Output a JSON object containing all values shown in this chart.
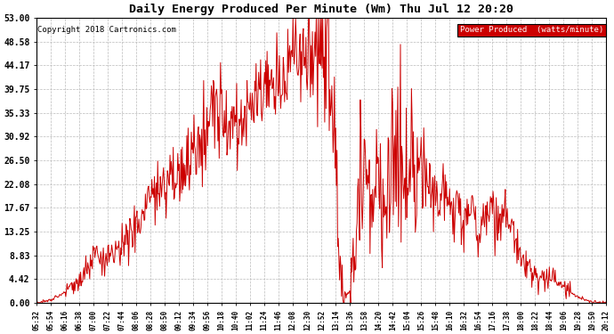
{
  "title": "Daily Energy Produced Per Minute (Wm) Thu Jul 12 20:20",
  "copyright": "Copyright 2018 Cartronics.com",
  "legend_label": "Power Produced  (watts/minute)",
  "legend_bg": "#cc0000",
  "legend_fg": "#ffffff",
  "line_color": "#cc0000",
  "bg_color": "#ffffff",
  "grid_color": "#bbbbbb",
  "y_ticks": [
    0.0,
    4.42,
    8.83,
    13.25,
    17.67,
    22.08,
    26.5,
    30.92,
    35.33,
    39.75,
    44.17,
    48.58,
    53.0
  ],
  "ymax": 53.0,
  "ymin": 0.0,
  "x_tick_labels": [
    "05:32",
    "05:54",
    "06:16",
    "06:38",
    "07:00",
    "07:22",
    "07:44",
    "08:06",
    "08:28",
    "08:50",
    "09:12",
    "09:34",
    "09:56",
    "10:18",
    "10:40",
    "11:02",
    "11:24",
    "11:46",
    "12:08",
    "12:30",
    "12:52",
    "13:14",
    "13:36",
    "13:58",
    "14:20",
    "14:42",
    "15:04",
    "15:26",
    "15:48",
    "16:10",
    "16:32",
    "16:54",
    "17:16",
    "17:38",
    "18:00",
    "18:22",
    "18:44",
    "19:06",
    "19:28",
    "19:50",
    "20:12"
  ]
}
